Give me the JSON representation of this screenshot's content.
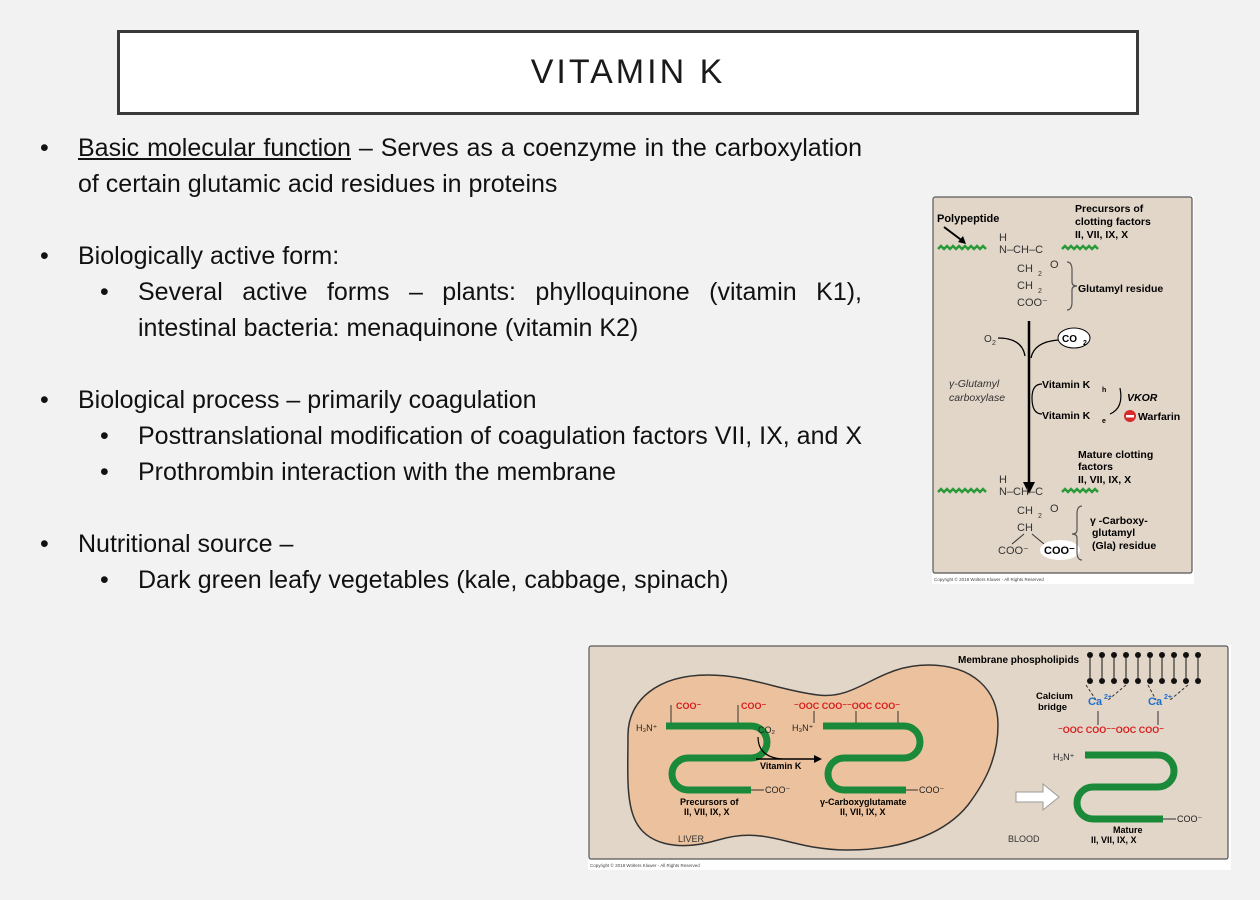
{
  "title": "VITAMIN K",
  "bullets": {
    "b1_label": "Basic molecular function",
    "b1_text": " – Serves as a coenzyme in the carboxylation of certain glutamic acid residues in proteins",
    "b2_text": "Biologically active form:",
    "b2_sub1": "Several active forms – plants: phylloquinone (vitamin K1), intestinal bacteria: menaquinone (vitamin K2)",
    "b3_text": "Biological process – primarily coagulation",
    "b3_sub1": "Posttranslational modification of coagulation factors VII, IX, and X",
    "b3_sub2": "Prothrombin interaction with the membrane",
    "b4_text": "Nutritional source –",
    "b4_sub1": "Dark green leafy vegetables (kale, cabbage, spinach)"
  },
  "figure1": {
    "polypeptide": "Polypeptide",
    "precursors_l1": "Precursors of",
    "precursors_l2": "clotting factors",
    "precursors_l3": "II, VII, IX, X",
    "h": "H",
    "n_ch_c": "N–CH–C",
    "o": "O",
    "ch2": "CH",
    "ch2_2": "CH",
    "coo": "COO⁻",
    "glutamyl_residue": "Glutamyl residue",
    "o2": "O",
    "co2": "CO",
    "carboxylase_l1": "γ-Glutamyl",
    "carboxylase_l2": "carboxylase",
    "vit_kh": "Vitamin K",
    "vit_ke": "Vitamin K",
    "vkor": "VKOR",
    "warfarin": "Warfarin",
    "mature_l1": "Mature clotting",
    "mature_l2": "factors",
    "mature_l3": "II, VII, IX, X",
    "h2": "H",
    "n_ch_c2": "N–CH–C",
    "o_2": "O",
    "ch2_3": "CH",
    "ch": "CH",
    "coo_a": "COO⁻",
    "coo_b": "COO⁻",
    "gla_l1": "γ -Carboxy-",
    "gla_l2": "glutamyl",
    "gla_l3": "(Gla) residue",
    "copyright": "Copyright © 2018 Wolters Kluwer - All Rights Reserved"
  },
  "figure2": {
    "membrane": "Membrane phospholipids",
    "calcium_l1": "Calcium",
    "calcium_l2": "bridge",
    "ca1": "Ca",
    "ca2": "Ca",
    "coo1": "COO⁻",
    "coo2": "COO⁻",
    "h3n1": "H₃N⁺",
    "co2": "CO₂",
    "vitamin_k": "Vitamin K",
    "gla_top": "⁻OOC COO⁻⁻OOC COO⁻",
    "h3n2": "H₃N⁺",
    "coo_end1": "COO⁻",
    "coo_end2": "COO⁻",
    "precursors_l1": "Precursors of",
    "precursors_l2": "II, VII, IX, X",
    "carboxy_l1": "γ-Carboxyglutamate",
    "carboxy_l2": "II, VII, IX, X",
    "liver": "LIVER",
    "blood": "BLOOD",
    "gla_top3": "⁻OOC COO⁻⁻OOC COO⁻",
    "h3n3": "H₃N⁺",
    "coo_end3": "COO⁻",
    "mature_l1": "Mature",
    "mature_l2": "II, VII, IX, X",
    "copyright": "Copyright © 2018 Wolters Kluwer - All Rights Reserved"
  }
}
